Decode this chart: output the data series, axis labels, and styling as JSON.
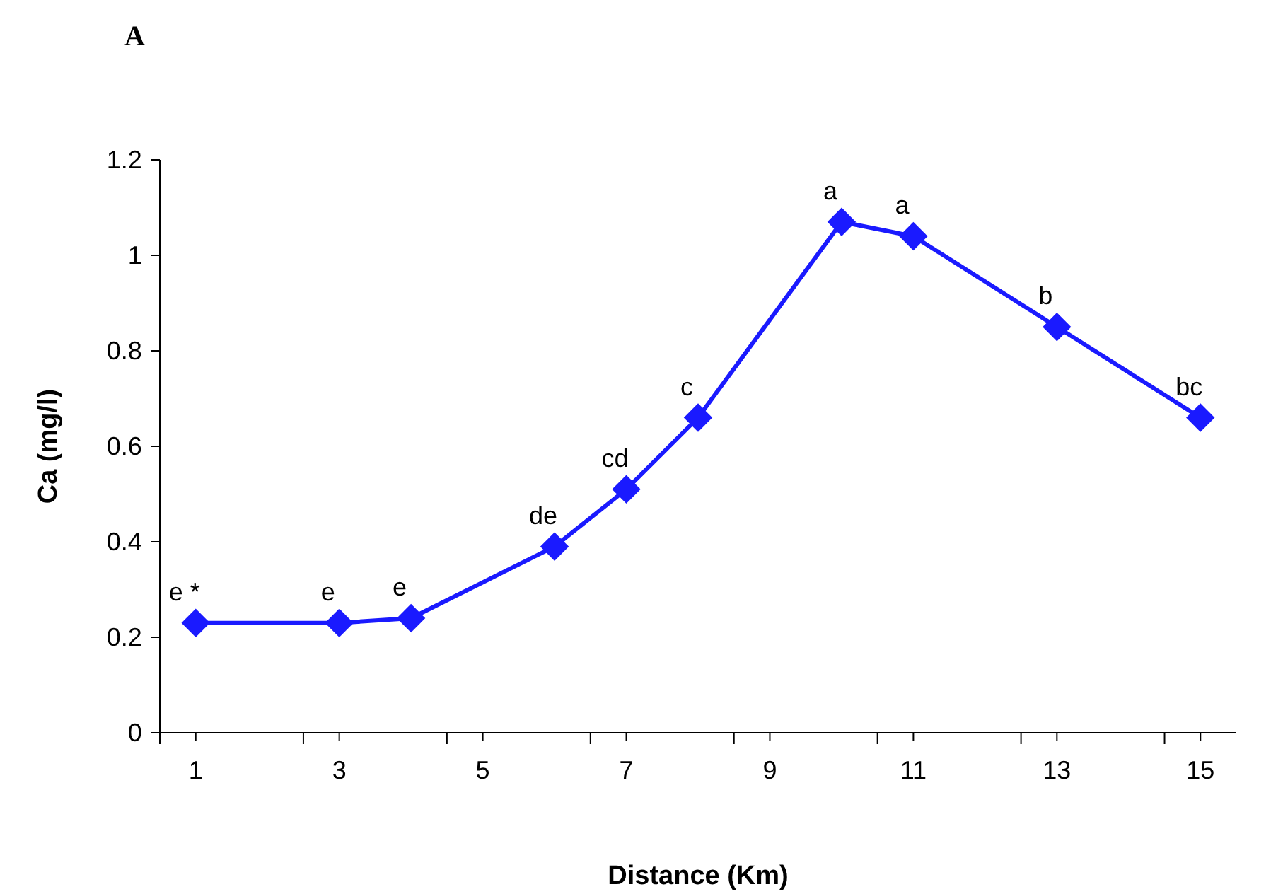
{
  "chart_data": {
    "type": "line",
    "title": "A",
    "xlabel": "Distance (Km)",
    "ylabel": "Ca (mg/l)",
    "x": [
      1,
      3,
      4,
      6,
      7,
      8,
      10,
      11,
      13,
      15
    ],
    "series": [
      {
        "color": "#1a1aff",
        "values": [
          0.23,
          0.23,
          0.24,
          0.39,
          0.51,
          0.66,
          1.07,
          1.04,
          0.85,
          0.66
        ]
      }
    ],
    "xlim": [
      0.5,
      15.5
    ],
    "xticks": [
      {
        "value": 0.5,
        "label": null
      },
      1,
      {
        "value": 2.5,
        "label": null
      },
      3,
      {
        "value": 4.5,
        "label": null
      },
      5,
      {
        "value": 6.5,
        "label": null
      },
      7,
      {
        "value": 8.5,
        "label": null
      },
      9,
      {
        "value": 10.5,
        "label": null
      },
      11,
      {
        "value": 12.5,
        "label": null
      },
      13,
      {
        "value": 14.5,
        "label": null
      },
      15
    ],
    "ylim": [
      0,
      1.2
    ],
    "yticks": [
      0,
      0.2,
      0.4,
      0.6,
      0.8,
      1,
      1.2
    ],
    "marker": "diamond",
    "line_style": "solid",
    "annotations": [
      {
        "text": "e *",
        "x": 1,
        "y": 0.23
      },
      {
        "text": "e",
        "x": 3,
        "y": 0.23
      },
      {
        "text": "e",
        "x": 4,
        "y": 0.24
      },
      {
        "text": "de",
        "x": 6,
        "y": 0.39
      },
      {
        "text": "cd",
        "x": 7,
        "y": 0.51
      },
      {
        "text": "c",
        "x": 8,
        "y": 0.66
      },
      {
        "text": "a",
        "x": 10,
        "y": 1.07
      },
      {
        "text": "a",
        "x": 11,
        "y": 1.04
      },
      {
        "text": "b",
        "x": 13,
        "y": 0.85
      },
      {
        "text": "bc",
        "x": 15,
        "y": 0.66
      }
    ]
  }
}
